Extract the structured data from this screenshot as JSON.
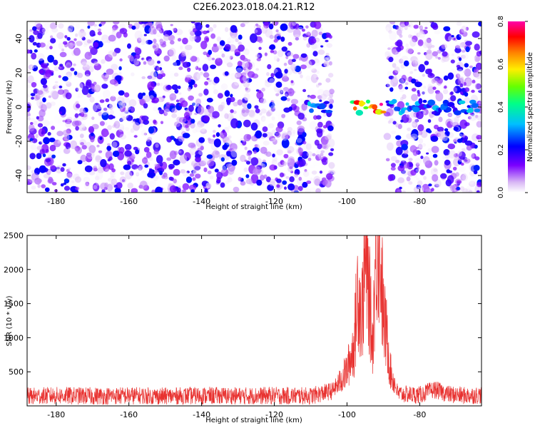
{
  "figure_title": "C2E6.2023.018.04.21.R12",
  "chart_data": [
    {
      "type": "heatmap",
      "title": "C2E6.2023.018.04.21.R12",
      "xlabel": "Height of straight line (km)",
      "ylabel": "Frequency (Hz)",
      "xlim": [
        -188,
        -63
      ],
      "ylim": [
        -50,
        50
      ],
      "x_ticks": [
        -180,
        -160,
        -140,
        -120,
        -100,
        -80
      ],
      "x_tick_labels": [
        "-180",
        "-160",
        "-140",
        "-120",
        "-100",
        "-80"
      ],
      "y_ticks": [
        -40,
        -20,
        0,
        20,
        40
      ],
      "y_tick_labels": [
        "-40",
        "-20",
        "0",
        "20",
        "40"
      ],
      "colorbar": {
        "label": "Normalized spectral amplitude",
        "range": [
          0,
          0.8
        ],
        "ticks": [
          0,
          0.2,
          0.4,
          0.6,
          0.8
        ],
        "tick_labels": [
          "0.0",
          "0.2",
          "0.4",
          "0.6",
          "0.8"
        ],
        "colormap": "white-purple-blue-cyan-green-yellow-red-magenta"
      },
      "blank_region_x": [
        -104,
        -89
      ],
      "signal_band": {
        "center_hz": 0,
        "half_width_hz": 5,
        "x_range": [
          -111,
          -64
        ],
        "peak_x": [
          -99,
          -90
        ],
        "peak_amplitude": 0.8
      },
      "noise_level": 0.15,
      "grid": false
    },
    {
      "type": "line",
      "xlabel": "Height of straight line (km)",
      "ylabel": "SNR (10 * v/v)",
      "xlim": [
        -188,
        -63
      ],
      "ylim": [
        0,
        2500
      ],
      "x_ticks": [
        -180,
        -160,
        -140,
        -120,
        -100,
        -80
      ],
      "x_tick_labels": [
        "-180",
        "-160",
        "-140",
        "-120",
        "-100",
        "-80"
      ],
      "y_ticks": [
        500,
        1000,
        1500,
        2000,
        2500
      ],
      "y_tick_labels": [
        "500",
        "1000",
        "1500",
        "2000",
        "2500"
      ],
      "series": [
        {
          "color": "#e8312f",
          "x": [
            -188,
            -180,
            -170,
            -160,
            -150,
            -140,
            -130,
            -120,
            -110,
            -104,
            -102,
            -100,
            -98,
            -97,
            -96,
            -95,
            -94,
            -93,
            -92,
            -91,
            -90,
            -89,
            -88,
            -86,
            -84,
            -80,
            -76,
            -72,
            -68,
            -63
          ],
          "y": [
            140,
            150,
            145,
            150,
            140,
            150,
            145,
            150,
            145,
            220,
            350,
            520,
            900,
            1800,
            1300,
            2100,
            1700,
            900,
            2300,
            2500,
            1300,
            1000,
            500,
            180,
            170,
            160,
            240,
            170,
            150,
            160
          ],
          "noise_amplitude": 130
        }
      ],
      "grid": false
    }
  ]
}
